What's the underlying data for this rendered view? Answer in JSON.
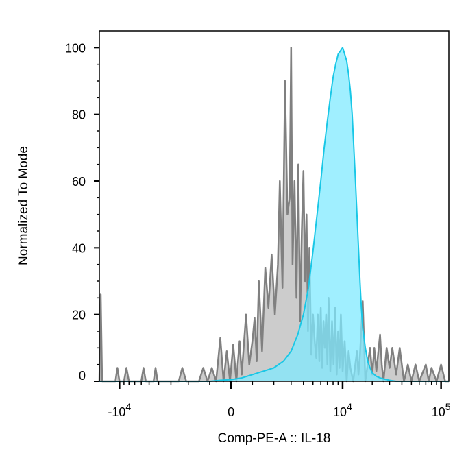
{
  "chart_data": {
    "type": "area",
    "title": "",
    "xlabel": "Comp-PE-A :: IL-18",
    "ylabel": "Normalized To Mode",
    "x_scale": "biexponential",
    "xlim": [
      -16000,
      120000
    ],
    "ylim": [
      0,
      105
    ],
    "y_ticks": [
      0,
      20,
      40,
      60,
      80,
      100
    ],
    "x_tick_labels": [
      {
        "value": -10000,
        "base": "-10",
        "exp": "4"
      },
      {
        "value": 0,
        "base": "0",
        "exp": ""
      },
      {
        "value": 10000,
        "base": "10",
        "exp": "4"
      },
      {
        "value": 100000,
        "base": "10",
        "exp": "5"
      }
    ],
    "grid": false,
    "series": [
      {
        "style": "isotype-control",
        "stroke": "#808080",
        "fill": "#cccccc",
        "points": [
          [
            -16000,
            0
          ],
          [
            -15500,
            26
          ],
          [
            -15000,
            0
          ],
          [
            -11000,
            0
          ],
          [
            -10500,
            4
          ],
          [
            -10000,
            0
          ],
          [
            -9000,
            0
          ],
          [
            -8500,
            4
          ],
          [
            -8000,
            0
          ],
          [
            -6000,
            0
          ],
          [
            -5700,
            4
          ],
          [
            -5400,
            0
          ],
          [
            -4500,
            0
          ],
          [
            -4300,
            4
          ],
          [
            -4100,
            0
          ],
          [
            -2500,
            0
          ],
          [
            -2300,
            4
          ],
          [
            -2100,
            0
          ],
          [
            -1500,
            0
          ],
          [
            -1300,
            4
          ],
          [
            -1100,
            0
          ],
          [
            -900,
            4
          ],
          [
            -700,
            0
          ],
          [
            -500,
            13
          ],
          [
            -350,
            0
          ],
          [
            -200,
            9
          ],
          [
            -50,
            0
          ],
          [
            100,
            11
          ],
          [
            250,
            0
          ],
          [
            400,
            12
          ],
          [
            500,
            2
          ],
          [
            700,
            20
          ],
          [
            850,
            5
          ],
          [
            1000,
            12
          ],
          [
            1100,
            19
          ],
          [
            1200,
            6
          ],
          [
            1300,
            30
          ],
          [
            1450,
            9
          ],
          [
            1600,
            34
          ],
          [
            1750,
            22
          ],
          [
            1900,
            38
          ],
          [
            2050,
            20
          ],
          [
            2200,
            35
          ],
          [
            2300,
            60
          ],
          [
            2450,
            28
          ],
          [
            2600,
            90
          ],
          [
            2750,
            50
          ],
          [
            2900,
            55
          ],
          [
            3000,
            100
          ],
          [
            3100,
            35
          ],
          [
            3250,
            60
          ],
          [
            3400,
            25
          ],
          [
            3550,
            65
          ],
          [
            3700,
            18
          ],
          [
            3850,
            45
          ],
          [
            4000,
            63
          ],
          [
            4150,
            30
          ],
          [
            4300,
            50
          ],
          [
            4450,
            15
          ],
          [
            4600,
            40
          ],
          [
            4800,
            8
          ],
          [
            5000,
            20
          ],
          [
            5200,
            12
          ],
          [
            5400,
            7
          ],
          [
            5600,
            20
          ],
          [
            5800,
            6
          ],
          [
            6000,
            22
          ],
          [
            6200,
            4
          ],
          [
            6400,
            18
          ],
          [
            6600,
            10
          ],
          [
            6800,
            20
          ],
          [
            7000,
            5
          ],
          [
            7200,
            25
          ],
          [
            7500,
            3
          ],
          [
            7800,
            18
          ],
          [
            8100,
            5
          ],
          [
            8400,
            22
          ],
          [
            8700,
            2
          ],
          [
            9000,
            15
          ],
          [
            9300,
            4
          ],
          [
            9600,
            20
          ],
          [
            10000,
            3
          ],
          [
            10500,
            12
          ],
          [
            11000,
            0
          ],
          [
            11500,
            9
          ],
          [
            12000,
            4
          ],
          [
            12800,
            0
          ],
          [
            14000,
            9
          ],
          [
            14500,
            2
          ],
          [
            15000,
            8
          ],
          [
            16000,
            24
          ],
          [
            17000,
            0
          ],
          [
            19000,
            10
          ],
          [
            20000,
            2
          ],
          [
            21000,
            10
          ],
          [
            22000,
            3
          ],
          [
            24000,
            14
          ],
          [
            25000,
            5
          ],
          [
            26000,
            0
          ],
          [
            28000,
            10
          ],
          [
            30000,
            4
          ],
          [
            32000,
            10
          ],
          [
            35000,
            2
          ],
          [
            38000,
            10
          ],
          [
            42000,
            0
          ],
          [
            46000,
            5
          ],
          [
            50000,
            0
          ],
          [
            55000,
            5
          ],
          [
            60000,
            0
          ],
          [
            70000,
            5
          ],
          [
            75000,
            0
          ],
          [
            80000,
            4
          ],
          [
            90000,
            0
          ],
          [
            100000,
            5
          ],
          [
            110000,
            0
          ],
          [
            120000,
            0
          ]
        ]
      },
      {
        "style": "il18",
        "stroke": "#19c7e6",
        "fill": "#80eaff",
        "points": [
          [
            -16000,
            0
          ],
          [
            -1000,
            0
          ],
          [
            -500,
            0.3
          ],
          [
            0,
            0.5
          ],
          [
            500,
            1
          ],
          [
            1000,
            2
          ],
          [
            1500,
            3
          ],
          [
            2000,
            4
          ],
          [
            2500,
            6
          ],
          [
            3000,
            9
          ],
          [
            3500,
            14
          ],
          [
            4000,
            20
          ],
          [
            4500,
            28
          ],
          [
            5000,
            39
          ],
          [
            5500,
            50
          ],
          [
            6000,
            60
          ],
          [
            6500,
            70
          ],
          [
            7000,
            78
          ],
          [
            7500,
            85
          ],
          [
            8000,
            91
          ],
          [
            8500,
            95
          ],
          [
            9000,
            98
          ],
          [
            9500,
            99
          ],
          [
            10000,
            100
          ],
          [
            10500,
            98
          ],
          [
            11000,
            96
          ],
          [
            11500,
            92
          ],
          [
            12000,
            87
          ],
          [
            12500,
            80
          ],
          [
            13000,
            70
          ],
          [
            13500,
            60
          ],
          [
            14000,
            50
          ],
          [
            14500,
            40
          ],
          [
            15000,
            30
          ],
          [
            15500,
            22
          ],
          [
            16000,
            16
          ],
          [
            17000,
            10
          ],
          [
            18000,
            6
          ],
          [
            19000,
            4
          ],
          [
            20000,
            2.5
          ],
          [
            22000,
            1.5
          ],
          [
            24000,
            1
          ],
          [
            27000,
            0.6
          ],
          [
            30000,
            0.3
          ],
          [
            35000,
            0
          ],
          [
            120000,
            0
          ]
        ]
      }
    ]
  }
}
